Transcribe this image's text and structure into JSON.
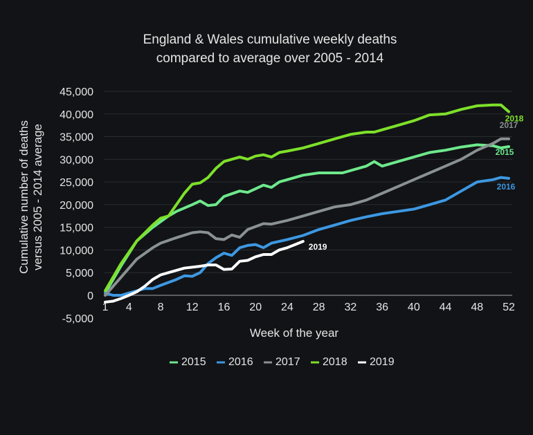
{
  "chart_data": {
    "type": "line",
    "title": [
      "England & Wales cumulative weekly deaths",
      "compared to average over 2005 - 2014"
    ],
    "xlabel": "Week of the year",
    "ylabel": [
      "Cumulative number of deaths",
      "versus 2005 - 2014 average"
    ],
    "ylim": [
      -5000,
      45000
    ],
    "xlim": [
      1,
      52
    ],
    "x_ticks": [
      1,
      4,
      8,
      12,
      16,
      20,
      24,
      28,
      32,
      36,
      40,
      44,
      48,
      52
    ],
    "y_ticks": [
      -5000,
      0,
      5000,
      10000,
      15000,
      20000,
      25000,
      30000,
      35000,
      40000,
      45000
    ],
    "y_tick_labels": [
      "-5,000",
      "0",
      "5,000",
      "10,000",
      "15,000",
      "20,000",
      "25,000",
      "30,000",
      "35,000",
      "40,000",
      "45,000"
    ],
    "grid": "horizontal",
    "legend_position": "bottom",
    "series": [
      {
        "name": "2015",
        "color": "#6ee88c",
        "end_label": "2015",
        "points": [
          [
            1,
            500
          ],
          [
            3,
            6500
          ],
          [
            5,
            12000
          ],
          [
            7,
            15000
          ],
          [
            9,
            17500
          ],
          [
            10,
            18500
          ],
          [
            12,
            20000
          ],
          [
            13,
            20800
          ],
          [
            14,
            19800
          ],
          [
            15,
            20000
          ],
          [
            16,
            21800
          ],
          [
            18,
            23000
          ],
          [
            19,
            22700
          ],
          [
            20,
            23500
          ],
          [
            21,
            24300
          ],
          [
            22,
            23800
          ],
          [
            23,
            25000
          ],
          [
            26,
            26500
          ],
          [
            28,
            27000
          ],
          [
            31,
            27000
          ],
          [
            33,
            28000
          ],
          [
            34,
            28500
          ],
          [
            35,
            29500
          ],
          [
            36,
            28500
          ],
          [
            38,
            29500
          ],
          [
            40,
            30500
          ],
          [
            42,
            31500
          ],
          [
            44,
            32000
          ],
          [
            46,
            32700
          ],
          [
            48,
            33200
          ],
          [
            50,
            33000
          ],
          [
            51,
            32500
          ],
          [
            52,
            32800
          ]
        ]
      },
      {
        "name": "2016",
        "color": "#3d98e2",
        "end_label": "2016",
        "points": [
          [
            1,
            500
          ],
          [
            2,
            0
          ],
          [
            3,
            0
          ],
          [
            4,
            500
          ],
          [
            5,
            1000
          ],
          [
            6,
            1500
          ],
          [
            7,
            1500
          ],
          [
            8,
            2200
          ],
          [
            10,
            3500
          ],
          [
            11,
            4300
          ],
          [
            12,
            4200
          ],
          [
            13,
            5000
          ],
          [
            14,
            7000
          ],
          [
            15,
            8300
          ],
          [
            16,
            9300
          ],
          [
            17,
            8800
          ],
          [
            18,
            10500
          ],
          [
            19,
            11000
          ],
          [
            20,
            11200
          ],
          [
            21,
            10500
          ],
          [
            22,
            11500
          ],
          [
            24,
            12300
          ],
          [
            26,
            13200
          ],
          [
            28,
            14500
          ],
          [
            30,
            15500
          ],
          [
            32,
            16500
          ],
          [
            34,
            17300
          ],
          [
            36,
            18000
          ],
          [
            38,
            18500
          ],
          [
            40,
            19000
          ],
          [
            42,
            20000
          ],
          [
            44,
            21000
          ],
          [
            46,
            23000
          ],
          [
            48,
            25000
          ],
          [
            50,
            25500
          ],
          [
            51,
            26000
          ],
          [
            52,
            25800
          ]
        ]
      },
      {
        "name": "2017",
        "color": "#8a9191",
        "end_label": "2017",
        "points": [
          [
            1,
            0
          ],
          [
            3,
            4000
          ],
          [
            5,
            8000
          ],
          [
            7,
            10500
          ],
          [
            8,
            11500
          ],
          [
            10,
            12700
          ],
          [
            12,
            13800
          ],
          [
            13,
            14000
          ],
          [
            14,
            13800
          ],
          [
            15,
            12500
          ],
          [
            16,
            12300
          ],
          [
            17,
            13300
          ],
          [
            18,
            12800
          ],
          [
            19,
            14500
          ],
          [
            21,
            15800
          ],
          [
            22,
            15700
          ],
          [
            24,
            16500
          ],
          [
            26,
            17500
          ],
          [
            28,
            18500
          ],
          [
            30,
            19500
          ],
          [
            32,
            20000
          ],
          [
            34,
            21000
          ],
          [
            36,
            22500
          ],
          [
            38,
            24000
          ],
          [
            40,
            25500
          ],
          [
            42,
            27000
          ],
          [
            44,
            28500
          ],
          [
            46,
            30000
          ],
          [
            48,
            32000
          ],
          [
            50,
            33500
          ],
          [
            51,
            34500
          ],
          [
            52,
            34500
          ]
        ]
      },
      {
        "name": "2018",
        "color": "#7ee02a",
        "end_label": "2018",
        "points": [
          [
            1,
            1000
          ],
          [
            3,
            7000
          ],
          [
            5,
            12000
          ],
          [
            7,
            15500
          ],
          [
            8,
            17000
          ],
          [
            9,
            17500
          ],
          [
            10,
            20000
          ],
          [
            11,
            22500
          ],
          [
            12,
            24500
          ],
          [
            13,
            24800
          ],
          [
            14,
            26000
          ],
          [
            15,
            28000
          ],
          [
            16,
            29500
          ],
          [
            17,
            30000
          ],
          [
            18,
            30500
          ],
          [
            19,
            30000
          ],
          [
            20,
            30700
          ],
          [
            21,
            31000
          ],
          [
            22,
            30500
          ],
          [
            23,
            31500
          ],
          [
            24,
            31800
          ],
          [
            26,
            32500
          ],
          [
            28,
            33500
          ],
          [
            30,
            34500
          ],
          [
            32,
            35500
          ],
          [
            34,
            36000
          ],
          [
            35,
            36000
          ],
          [
            36,
            36500
          ],
          [
            38,
            37500
          ],
          [
            40,
            38500
          ],
          [
            42,
            39800
          ],
          [
            44,
            40000
          ],
          [
            46,
            41000
          ],
          [
            48,
            41800
          ],
          [
            50,
            42000
          ],
          [
            51,
            42000
          ],
          [
            52,
            40500
          ]
        ]
      },
      {
        "name": "2019",
        "color": "#ffffff",
        "end_label": "2019",
        "points": [
          [
            1,
            -1500
          ],
          [
            2,
            -1300
          ],
          [
            3,
            -700
          ],
          [
            4,
            0
          ],
          [
            5,
            800
          ],
          [
            6,
            2000
          ],
          [
            7,
            3500
          ],
          [
            8,
            4500
          ],
          [
            9,
            5000
          ],
          [
            10,
            5500
          ],
          [
            11,
            6000
          ],
          [
            12,
            6200
          ],
          [
            13,
            6400
          ],
          [
            14,
            6700
          ],
          [
            15,
            6700
          ],
          [
            16,
            5700
          ],
          [
            17,
            5800
          ],
          [
            18,
            7500
          ],
          [
            19,
            7700
          ],
          [
            20,
            8500
          ],
          [
            21,
            9000
          ],
          [
            22,
            9000
          ],
          [
            23,
            10000
          ],
          [
            24,
            10500
          ],
          [
            25,
            11200
          ],
          [
            26,
            11900
          ]
        ]
      }
    ]
  }
}
